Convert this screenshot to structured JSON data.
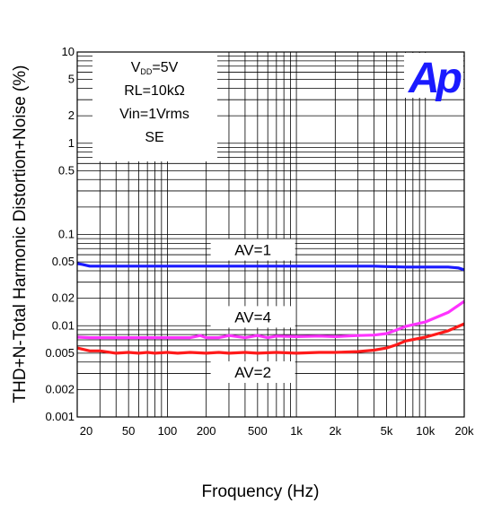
{
  "chart_data": {
    "type": "line",
    "title": "",
    "xlabel": "Froquency (Hz)",
    "ylabel": "THD+N-Total Harmonic Distortion+Noise (%)",
    "x_scale": "log",
    "y_scale": "log",
    "xlim": [
      20,
      20000
    ],
    "ylim": [
      0.001,
      10
    ],
    "grid": true,
    "x_ticks": [
      {
        "value": 20,
        "label": "20"
      },
      {
        "value": 50,
        "label": "50"
      },
      {
        "value": 100,
        "label": "100"
      },
      {
        "value": 200,
        "label": "200"
      },
      {
        "value": 500,
        "label": "500"
      },
      {
        "value": 1000,
        "label": "1k"
      },
      {
        "value": 2000,
        "label": "2k"
      },
      {
        "value": 5000,
        "label": "5k"
      },
      {
        "value": 10000,
        "label": "10k"
      },
      {
        "value": 20000,
        "label": "20k"
      }
    ],
    "y_ticks": [
      {
        "value": 10,
        "label": "10"
      },
      {
        "value": 5,
        "label": "5"
      },
      {
        "value": 2,
        "label": "2"
      },
      {
        "value": 1,
        "label": "1"
      },
      {
        "value": 0.5,
        "label": "0.5"
      },
      {
        "value": 0.1,
        "label": "0.1"
      },
      {
        "value": 0.05,
        "label": "0.05"
      },
      {
        "value": 0.02,
        "label": "0.02"
      },
      {
        "value": 0.01,
        "label": "0.01"
      },
      {
        "value": 0.005,
        "label": "0.005"
      },
      {
        "value": 0.002,
        "label": "0.002"
      },
      {
        "value": 0.001,
        "label": "0.001"
      }
    ],
    "conditions": {
      "line1_main": "V",
      "line1_sub": "DD",
      "line1_rest": "=5V",
      "line2": "RL=10kΩ",
      "line3": "Vin=1Vrms",
      "line4": "SE"
    },
    "logo": "Ap",
    "series": [
      {
        "name": "AV=1",
        "color": "#1a1aff",
        "label_at": [
          3000,
          0.068
        ],
        "x": [
          20,
          22,
          25,
          30,
          40,
          50,
          100,
          200,
          500,
          1000,
          2000,
          4000,
          5000,
          7000,
          10000,
          15000,
          18000,
          20000
        ],
        "y": [
          0.048,
          0.047,
          0.045,
          0.045,
          0.045,
          0.045,
          0.045,
          0.045,
          0.045,
          0.045,
          0.045,
          0.045,
          0.0445,
          0.044,
          0.044,
          0.044,
          0.043,
          0.041
        ]
      },
      {
        "name": "AV=4",
        "color": "#ff33ff",
        "label_at": [
          3000,
          0.0125
        ],
        "x": [
          20,
          25,
          30,
          40,
          50,
          70,
          100,
          150,
          180,
          200,
          250,
          300,
          400,
          500,
          600,
          700,
          1000,
          1500,
          2000,
          3000,
          4000,
          5000,
          6000,
          7000,
          10000,
          15000,
          20000
        ],
        "y": [
          0.0075,
          0.0074,
          0.0074,
          0.0074,
          0.0074,
          0.0074,
          0.0074,
          0.0074,
          0.0078,
          0.0074,
          0.0074,
          0.0078,
          0.0074,
          0.0078,
          0.0074,
          0.0077,
          0.0076,
          0.0077,
          0.0076,
          0.0078,
          0.0079,
          0.0082,
          0.009,
          0.0098,
          0.011,
          0.014,
          0.0185
        ]
      },
      {
        "name": "AV=2",
        "color": "#ff1a1a",
        "label_at": [
          3000,
          0.0031
        ],
        "x": [
          20,
          25,
          30,
          40,
          50,
          60,
          70,
          80,
          100,
          120,
          150,
          200,
          250,
          300,
          400,
          500,
          700,
          1000,
          1500,
          2000,
          3000,
          4000,
          5000,
          6000,
          7000,
          10000,
          15000,
          20000
        ],
        "y": [
          0.0057,
          0.0053,
          0.0053,
          0.005,
          0.0051,
          0.005,
          0.0051,
          0.005,
          0.0051,
          0.005,
          0.0051,
          0.005,
          0.0051,
          0.005,
          0.0051,
          0.005,
          0.0051,
          0.005,
          0.0051,
          0.0051,
          0.0052,
          0.0054,
          0.0057,
          0.0062,
          0.0068,
          0.0075,
          0.0088,
          0.0105
        ]
      }
    ]
  }
}
